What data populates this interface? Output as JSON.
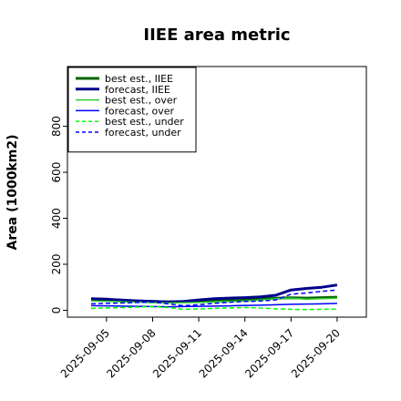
{
  "chart_data": {
    "type": "line",
    "title": "IIEE area metric",
    "xlabel": "",
    "ylabel": "Area (1000km2)",
    "x": [
      "2025-09-04",
      "2025-09-05",
      "2025-09-06",
      "2025-09-07",
      "2025-09-08",
      "2025-09-09",
      "2025-09-10",
      "2025-09-11",
      "2025-09-12",
      "2025-09-13",
      "2025-09-14",
      "2025-09-15",
      "2025-09-16",
      "2025-09-17",
      "2025-09-18",
      "2025-09-19",
      "2025-09-20"
    ],
    "x_ticks": [
      "2025-09-05",
      "2025-09-08",
      "2025-09-11",
      "2025-09-14",
      "2025-09-17",
      "2025-09-20"
    ],
    "highlight_tick": "2025-09-11",
    "highlight_color": "#228b22",
    "ylim": [
      -30,
      1060
    ],
    "y_ticks": [
      0,
      200,
      400,
      600,
      800
    ],
    "grid": false,
    "legend_position": "top-left",
    "series": [
      {
        "name": "best est., IIEE",
        "color": "#006400",
        "dash": "solid",
        "width": 3,
        "values": [
          48,
          46,
          43,
          40,
          38,
          36,
          37,
          40,
          43,
          45,
          47,
          49,
          52,
          54,
          53,
          55,
          57
        ]
      },
      {
        "name": "forecast, IIEE",
        "color": "#00008b",
        "dash": "solid",
        "width": 3,
        "values": [
          50,
          48,
          44,
          41,
          38,
          36,
          38,
          45,
          50,
          53,
          55,
          58,
          65,
          88,
          95,
          100,
          110
        ]
      },
      {
        "name": "best est., over",
        "color": "#32cd32",
        "dash": "solid",
        "width": 1.5,
        "values": [
          40,
          39,
          37,
          35,
          33,
          32,
          33,
          34,
          36,
          38,
          40,
          44,
          50,
          52,
          48,
          50,
          52
        ]
      },
      {
        "name": "forecast, over",
        "color": "#0000ff",
        "dash": "solid",
        "width": 1.5,
        "values": [
          20,
          19,
          18,
          17,
          16,
          15,
          16,
          17,
          18,
          19,
          21,
          22,
          24,
          26,
          27,
          28,
          30
        ]
      },
      {
        "name": "best est., under",
        "color": "#00ff00",
        "dash": "dashed",
        "width": 1.5,
        "values": [
          8,
          10,
          12,
          14,
          16,
          12,
          4,
          6,
          8,
          10,
          12,
          10,
          6,
          4,
          3,
          4,
          5
        ]
      },
      {
        "name": "forecast, under",
        "color": "#0000ff",
        "dash": "dashed",
        "width": 1.5,
        "values": [
          28,
          30,
          32,
          34,
          36,
          28,
          20,
          24,
          30,
          35,
          38,
          40,
          45,
          70,
          75,
          82,
          88
        ]
      }
    ]
  }
}
